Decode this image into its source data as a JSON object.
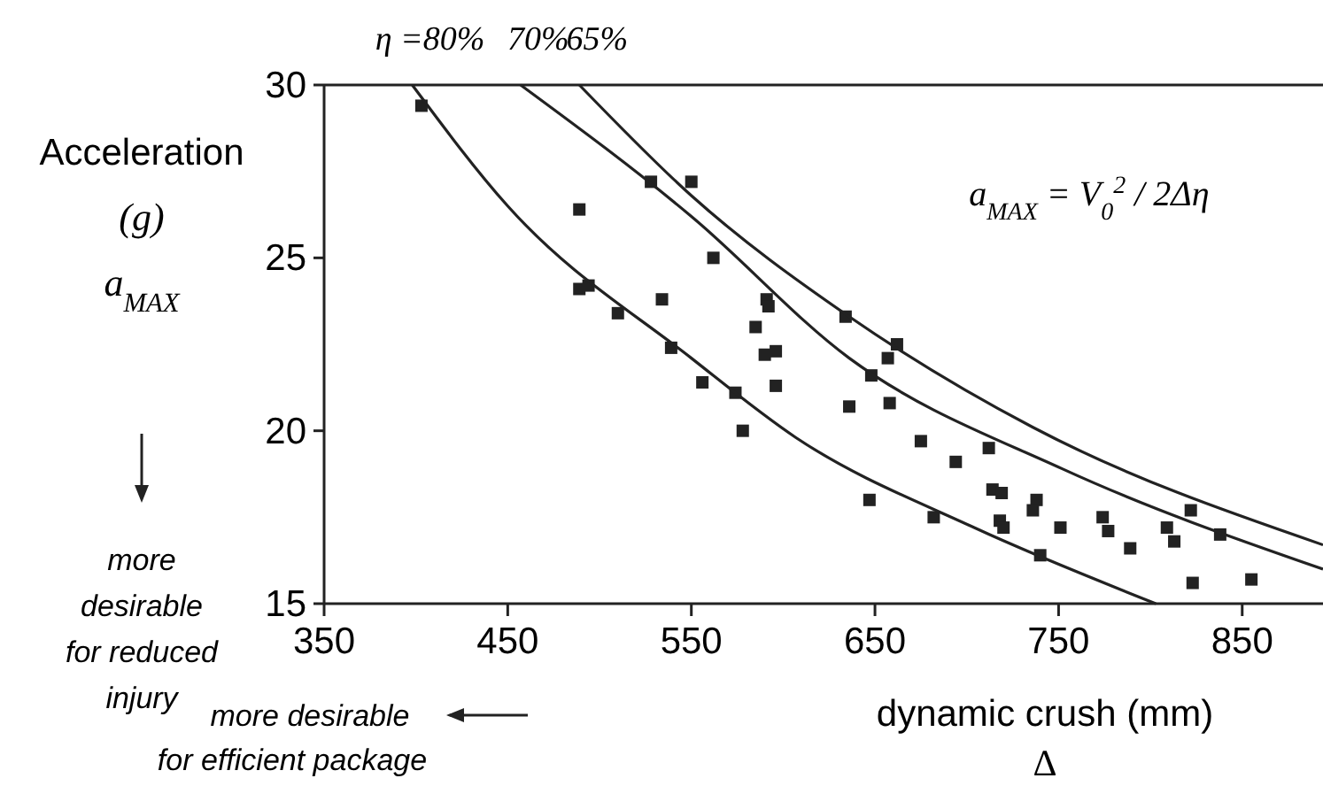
{
  "chart_data": {
    "type": "scatter",
    "xlabel": "dynamic crush (mm)\nΔ",
    "ylabel": "Acceleration\n(g)\na$_{MAX}$",
    "xlim": [
      350,
      894
    ],
    "ylim": [
      15,
      30
    ],
    "xticks": [
      350,
      450,
      550,
      650,
      750,
      850
    ],
    "yticks": [
      15,
      20,
      25,
      30
    ],
    "grid": false,
    "annotations": [
      "a$_{MAX}$ = V$_{0}$$^{2}$ / 2Δη",
      "more\ndesirable\nfor reduced\ninjury",
      "more desirable\nfor efficient package"
    ],
    "series": [
      {
        "marker": "square",
        "color": "#222222",
        "x": [
          403,
          528,
          550,
          489,
          562,
          489,
          494,
          510,
          534,
          591,
          592,
          585,
          590,
          596,
          539,
          634,
          662,
          657,
          648,
          556,
          574,
          578,
          596,
          636,
          658,
          675,
          694,
          712,
          647,
          682,
          714,
          719,
          718,
          720,
          738,
          736,
          740,
          751,
          774,
          777,
          789,
          809,
          813,
          822,
          838,
          823,
          855
        ],
        "values": [
          29.4,
          27.2,
          27.2,
          26.4,
          25.0,
          24.1,
          24.2,
          23.4,
          23.8,
          23.8,
          23.6,
          23.0,
          22.2,
          22.3,
          22.4,
          23.3,
          22.5,
          22.1,
          21.6,
          21.4,
          21.1,
          20.0,
          21.3,
          20.7,
          20.8,
          19.7,
          19.1,
          19.5,
          18.0,
          17.5,
          18.3,
          18.2,
          17.4,
          17.2,
          18.0,
          17.7,
          16.4,
          17.2,
          17.5,
          17.1,
          16.6,
          17.2,
          16.8,
          17.7,
          17.0,
          15.6,
          15.7
        ]
      },
      {
        "type": "line",
        "name": "η =80%",
        "color": "#222222",
        "x": [
          398,
          450,
          550,
          607,
          704,
          803
        ],
        "values": [
          30,
          26.5,
          22.1,
          19.8,
          17.2,
          15
        ]
      },
      {
        "type": "line",
        "name": "70%",
        "color": "#222222",
        "x": [
          457,
          550,
          636,
          752,
          894
        ],
        "values": [
          30,
          26.2,
          22.1,
          18.9,
          16.0
        ]
      },
      {
        "type": "line",
        "name": "65%",
        "color": "#222222",
        "x": [
          489,
          550,
          636,
          736,
          894
        ],
        "values": [
          30,
          26.8,
          23.3,
          20.1,
          16.7
        ]
      }
    ]
  }
}
